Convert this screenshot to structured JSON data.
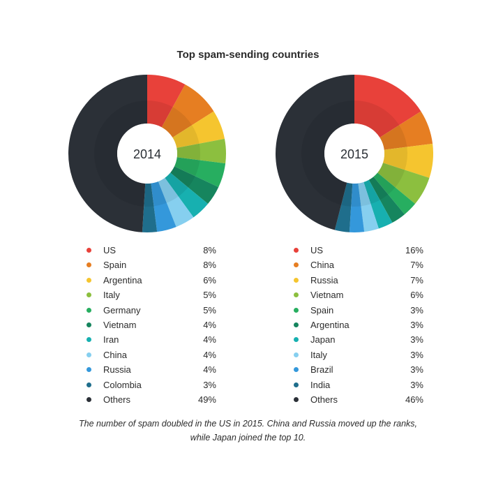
{
  "title": "Top spam-sending countries",
  "caption_line1": "The number of spam doubled in the US in 2015. China and Russia moved up the ranks,",
  "caption_line2": "while Japan joined the top 10.",
  "colors": {
    "c1": "#e8413a",
    "c2": "#e67e22",
    "c3": "#f5c52f",
    "c4": "#8cbf3f",
    "c5": "#27ae60",
    "c6": "#16855e",
    "c7": "#17b0b0",
    "c8": "#86cfef",
    "c9": "#3498db",
    "c10": "#1f6e8c",
    "others": "#2b3037"
  },
  "chart_data": [
    {
      "type": "pie",
      "donut": true,
      "center_label": "2014",
      "slices": [
        {
          "name": "US",
          "value": 8,
          "label": "8%",
          "color": "#e8413a"
        },
        {
          "name": "Spain",
          "value": 8,
          "label": "8%",
          "color": "#e67e22"
        },
        {
          "name": "Argentina",
          "value": 6,
          "label": "6%",
          "color": "#f5c52f"
        },
        {
          "name": "Italy",
          "value": 5,
          "label": "5%",
          "color": "#8cbf3f"
        },
        {
          "name": "Germany",
          "value": 5,
          "label": "5%",
          "color": "#27ae60"
        },
        {
          "name": "Vietnam",
          "value": 4,
          "label": "4%",
          "color": "#16855e"
        },
        {
          "name": "Iran",
          "value": 4,
          "label": "4%",
          "color": "#17b0b0"
        },
        {
          "name": "China",
          "value": 4,
          "label": "4%",
          "color": "#86cfef"
        },
        {
          "name": "Russia",
          "value": 4,
          "label": "4%",
          "color": "#3498db"
        },
        {
          "name": "Colombia",
          "value": 3,
          "label": "3%",
          "color": "#1f6e8c"
        },
        {
          "name": "Others",
          "value": 49,
          "label": "49%",
          "color": "#2b3037"
        }
      ]
    },
    {
      "type": "pie",
      "donut": true,
      "center_label": "2015",
      "slices": [
        {
          "name": "US",
          "value": 16,
          "label": "16%",
          "color": "#e8413a"
        },
        {
          "name": "China",
          "value": 7,
          "label": "7%",
          "color": "#e67e22"
        },
        {
          "name": "Russia",
          "value": 7,
          "label": "7%",
          "color": "#f5c52f"
        },
        {
          "name": "Vietnam",
          "value": 6,
          "label": "6%",
          "color": "#8cbf3f"
        },
        {
          "name": "Spain",
          "value": 3,
          "label": "3%",
          "color": "#27ae60"
        },
        {
          "name": "Argentina",
          "value": 3,
          "label": "3%",
          "color": "#16855e"
        },
        {
          "name": "Japan",
          "value": 3,
          "label": "3%",
          "color": "#17b0b0"
        },
        {
          "name": "Italy",
          "value": 3,
          "label": "3%",
          "color": "#86cfef"
        },
        {
          "name": "Brazil",
          "value": 3,
          "label": "3%",
          "color": "#3498db"
        },
        {
          "name": "India",
          "value": 3,
          "label": "3%",
          "color": "#1f6e8c"
        },
        {
          "name": "Others",
          "value": 46,
          "label": "46%",
          "color": "#2b3037"
        }
      ]
    }
  ]
}
